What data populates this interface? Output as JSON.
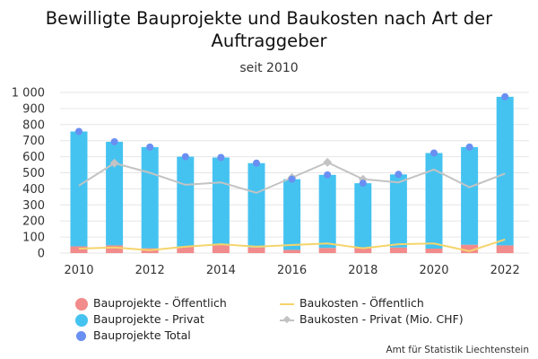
{
  "title": "Bewilligte Bauprojekte und Baukosten nach Art der Auftraggeber",
  "subtitle": "seit 2010",
  "credit": "Amt für Statistik Liechtenstein",
  "colors": {
    "oeffentlich_bar": "#f28b8b",
    "privat_bar": "#45c3f0",
    "total_dot": "#6a8ff2",
    "baukosten_oeffentlich": "#f5d46b",
    "baukosten_privat": "#c3c3c3",
    "grid": "#e6e6e6"
  },
  "legend": [
    {
      "label": "Bauprojekte - Öffentlich",
      "symbol": "circle",
      "color": "#f28b8b"
    },
    {
      "label": "Baukosten - Öffentlich",
      "symbol": "line",
      "color": "#f5d46b"
    },
    {
      "label": "Bauprojekte - Privat",
      "symbol": "circle",
      "color": "#45c3f0"
    },
    {
      "label": "Baukosten - Privat (Mio. CHF)",
      "symbol": "line-diamond",
      "color": "#c3c3c3"
    },
    {
      "label": "Bauprojekte Total",
      "symbol": "dot",
      "color": "#6a8ff2"
    }
  ],
  "chart_data": {
    "type": "bar",
    "stacked": true,
    "x": [
      2010,
      2011,
      2012,
      2013,
      2014,
      2015,
      2016,
      2017,
      2018,
      2019,
      2020,
      2021,
      2022
    ],
    "xticks": [
      "2010",
      "2012",
      "2014",
      "2016",
      "2018",
      "2020",
      "2022"
    ],
    "ylim": [
      0,
      1000
    ],
    "yticks": [
      "0",
      "100",
      "200",
      "300",
      "400",
      "500",
      "600",
      "700",
      "800",
      "900",
      "1 000"
    ],
    "grid": true,
    "legend_position": "bottom",
    "series": [
      {
        "name": "Bauprojekte - Öffentlich",
        "kind": "bar",
        "values": [
          42,
          48,
          30,
          40,
          50,
          35,
          20,
          32,
          30,
          35,
          28,
          52,
          48
        ]
      },
      {
        "name": "Bauprojekte - Privat",
        "kind": "bar",
        "values": [
          715,
          645,
          630,
          560,
          545,
          525,
          440,
          455,
          405,
          455,
          595,
          608,
          925
        ]
      },
      {
        "name": "Bauprojekte Total",
        "kind": "dot",
        "values": [
          757,
          693,
          660,
          600,
          595,
          560,
          460,
          487,
          435,
          490,
          623,
          660,
          973
        ]
      },
      {
        "name": "Baukosten - Öffentlich",
        "kind": "line",
        "values": [
          28,
          35,
          18,
          40,
          55,
          40,
          50,
          60,
          30,
          55,
          60,
          12,
          85
        ]
      },
      {
        "name": "Baukosten - Privat (Mio. CHF)",
        "kind": "line",
        "values": [
          420,
          560,
          500,
          425,
          440,
          375,
          470,
          565,
          460,
          440,
          520,
          410,
          495
        ]
      }
    ]
  }
}
